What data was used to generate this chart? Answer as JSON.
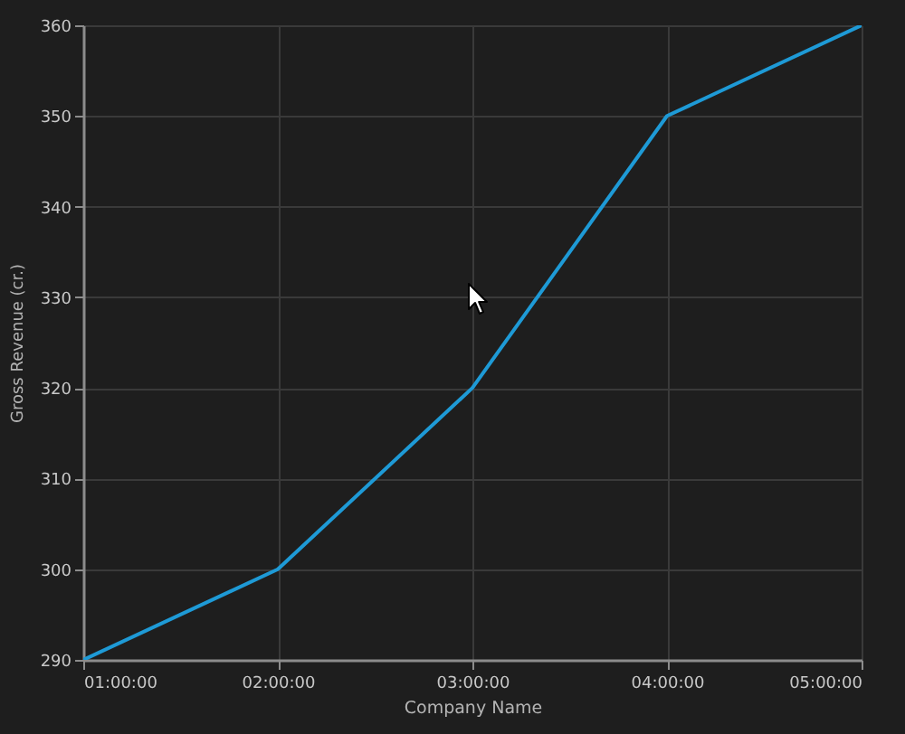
{
  "chart_data": {
    "type": "line",
    "xlabel": "Company Name",
    "ylabel": "Gross Revenue (cr.)",
    "x": [
      1,
      2,
      3,
      4,
      5
    ],
    "values": [
      290,
      300,
      320,
      350,
      360
    ],
    "color": "#1e9ad6",
    "xlim": [
      1,
      5
    ],
    "xticks": [
      {
        "value": 1,
        "label": "01:00:00"
      },
      {
        "value": 2,
        "label": "02:00:00"
      },
      {
        "value": 3,
        "label": "03:00:00"
      },
      {
        "value": 4,
        "label": "04:00:00"
      },
      {
        "value": 5,
        "label": "05:00:00"
      }
    ],
    "ylim": [
      290,
      360
    ],
    "yticks": [
      290,
      300,
      310,
      320,
      330,
      340,
      350,
      360
    ],
    "grid": true
  }
}
